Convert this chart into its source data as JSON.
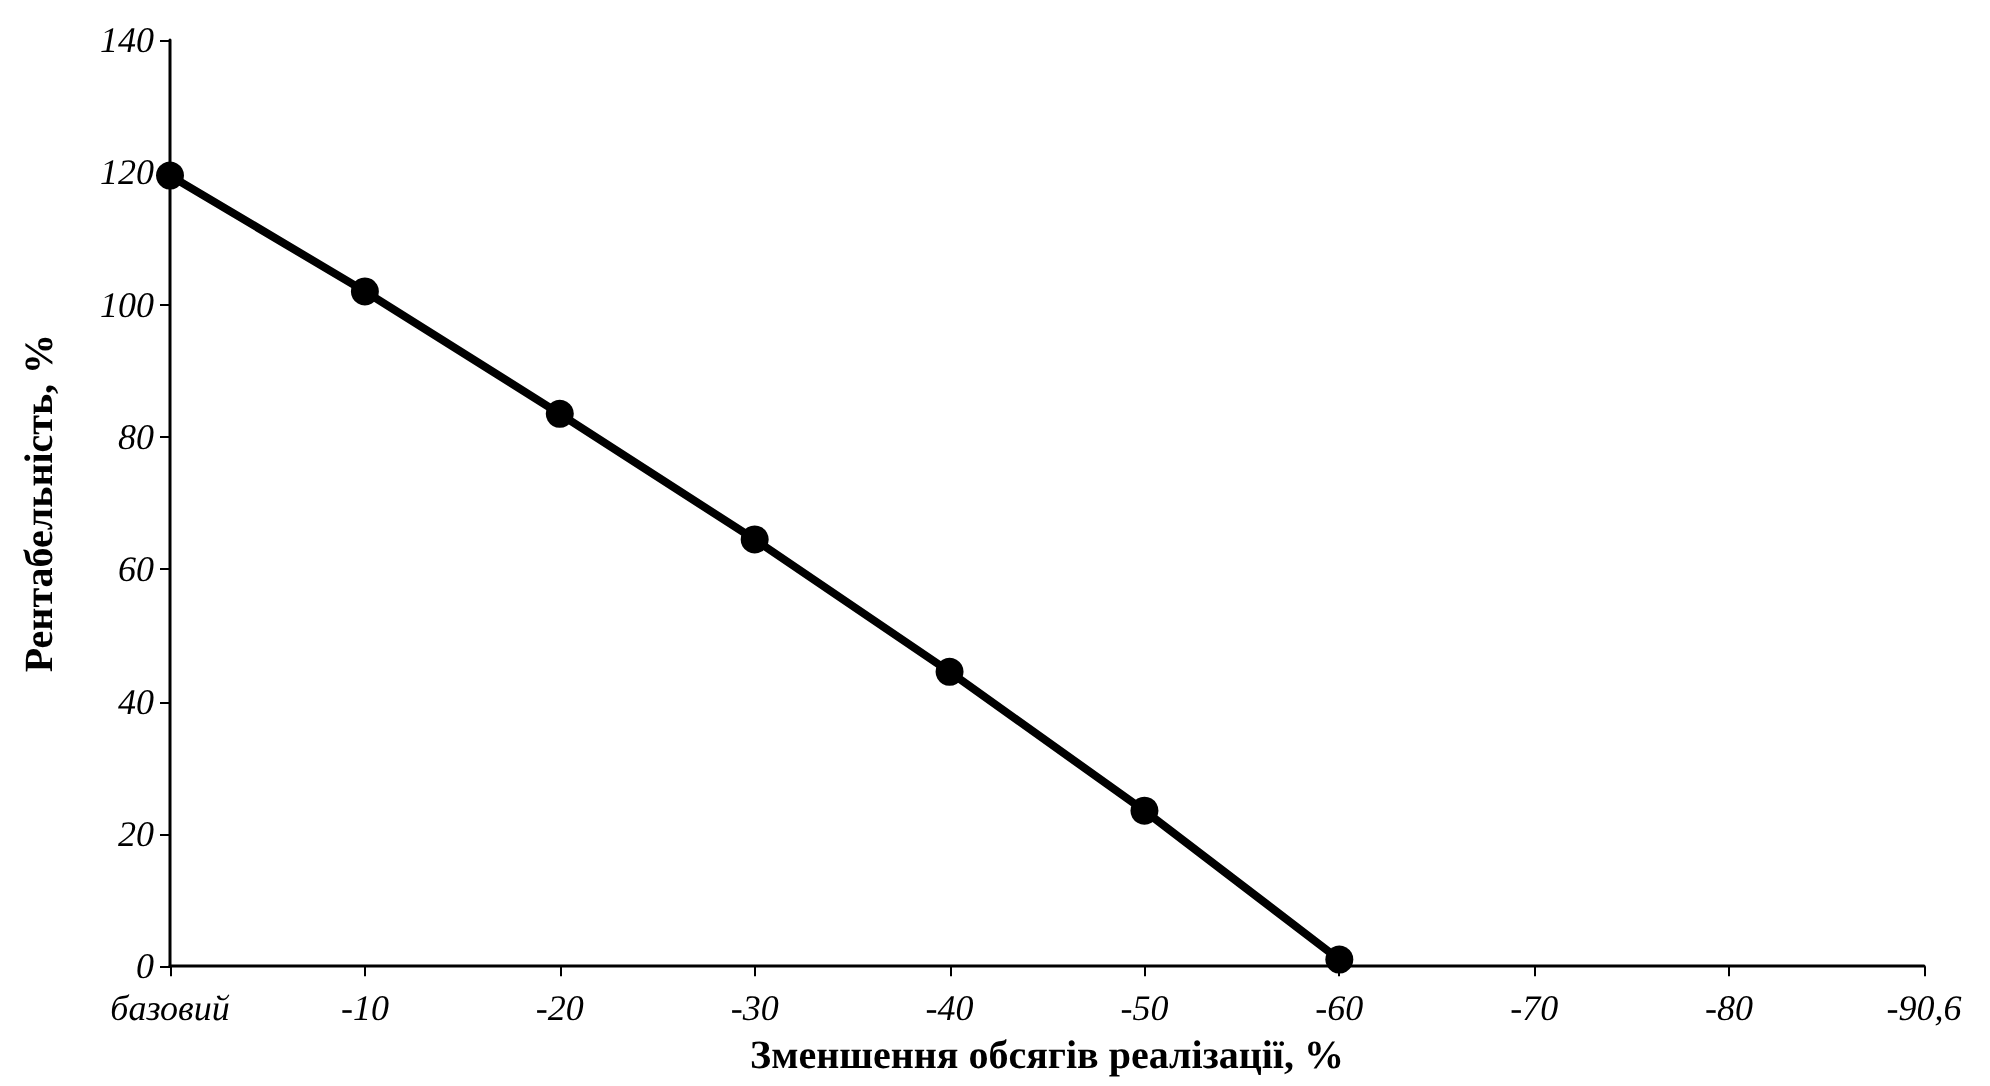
{
  "chart_data": {
    "type": "line",
    "xlabel": "Зменшення обсягів реалізації, %",
    "ylabel": "Рентабельність, %",
    "categories": [
      "базовий",
      "-10",
      "-20",
      "-30",
      "-40",
      "-50",
      "-60",
      "-70",
      "-80",
      "-90,6"
    ],
    "series": [
      {
        "color": "#000000",
        "values": [
          119.5,
          102,
          83.5,
          64.5,
          44.5,
          23.5,
          1,
          null,
          null,
          null
        ]
      }
    ],
    "ylim": [
      0,
      140
    ],
    "yticks": [
      0,
      20,
      40,
      60,
      80,
      100,
      120,
      140
    ],
    "grid": false,
    "marker": "circle",
    "line_style": "solid"
  }
}
